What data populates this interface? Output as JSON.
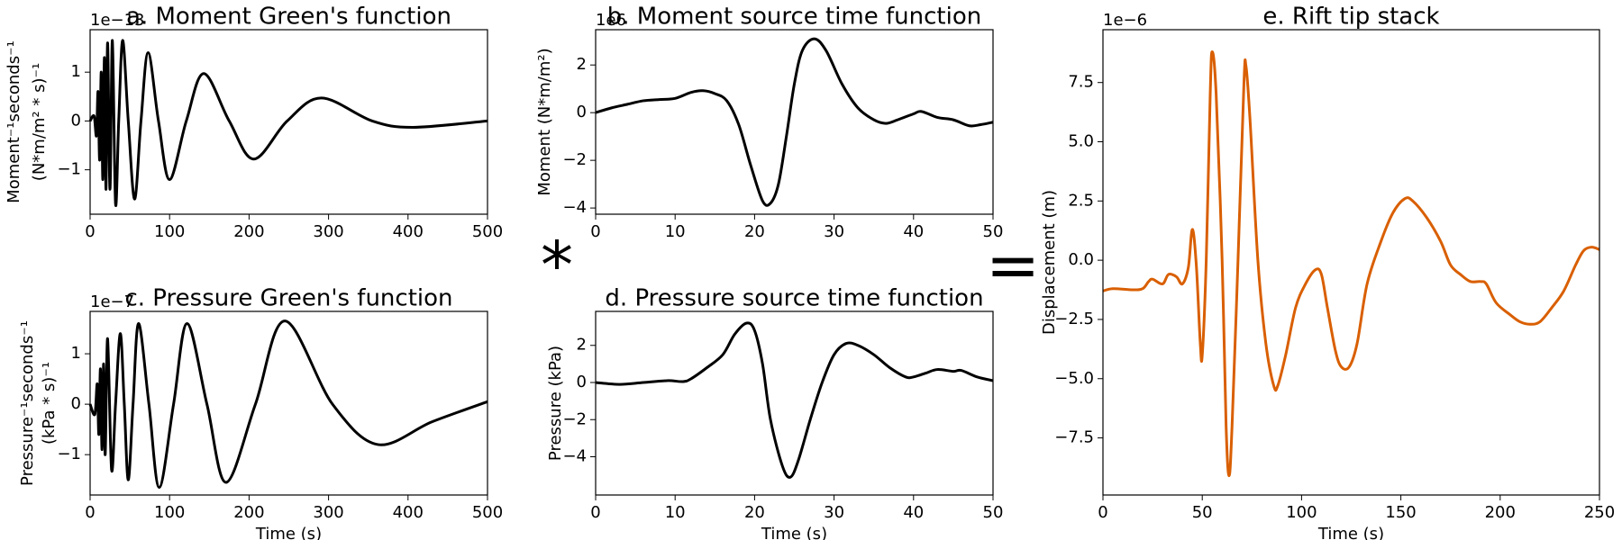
{
  "convolution_symbol": "*",
  "equals_symbol": "=",
  "chart_data": [
    {
      "type": "line",
      "title": "a. Moment Green's function",
      "y_offset_label": "1e−13",
      "ylabel": [
        "Moment⁻¹seconds⁻¹",
        "(N*m/m² * s)⁻¹"
      ],
      "x": [
        0,
        5,
        8,
        10,
        12,
        14,
        16,
        18,
        20,
        22,
        25,
        28,
        32,
        36,
        41,
        48,
        56,
        64,
        73,
        86,
        100,
        121,
        143,
        175,
        206,
        248,
        291,
        355,
        406,
        500
      ],
      "series": [
        {
          "color": "#000000",
          "values": [
            0,
            0.1,
            -0.3,
            0.6,
            -0.8,
            1.0,
            -1.2,
            1.3,
            -1.4,
            1.6,
            -1.4,
            1.65,
            -1.7,
            0,
            1.65,
            0,
            -1.6,
            0,
            1.4,
            0,
            -1.2,
            0,
            0.97,
            0,
            -0.78,
            0,
            0.47,
            0,
            -0.13,
            0
          ]
        }
      ],
      "xlim": [
        0,
        500
      ],
      "xticks": [
        0,
        100,
        200,
        300,
        400,
        500
      ],
      "ylim": [
        -1.91,
        1.87
      ],
      "yticks": [
        {
          "value": -1,
          "label": "−1"
        },
        0,
        1
      ]
    },
    {
      "type": "line",
      "title": "b. Moment source time function",
      "y_offset_label": "1e6",
      "ylabel": [
        "Moment (N*m/m²)"
      ],
      "x": [
        0,
        2,
        4,
        6,
        8,
        10,
        12,
        13.5,
        15,
        16.5,
        18,
        19.5,
        21,
        22,
        23,
        24,
        25,
        26,
        27.5,
        29,
        31,
        33,
        35,
        36.5,
        38,
        40,
        41,
        43,
        45,
        47,
        48.5,
        50
      ],
      "series": [
        {
          "color": "#000000",
          "values": [
            0,
            0.2,
            0.35,
            0.5,
            0.55,
            0.6,
            0.85,
            0.92,
            0.8,
            0.5,
            -0.5,
            -2.2,
            -3.7,
            -3.8,
            -3,
            -1,
            1.2,
            2.6,
            3.1,
            2.6,
            1.2,
            0.2,
            -0.3,
            -0.45,
            -0.3,
            -0.05,
            0.05,
            -0.2,
            -0.3,
            -0.55,
            -0.5,
            -0.4
          ]
        }
      ],
      "xlim": [
        0,
        50
      ],
      "xticks": [
        0,
        10,
        20,
        30,
        40,
        50
      ],
      "ylim": [
        -4.26,
        3.48
      ],
      "yticks": [
        {
          "value": -4,
          "label": "−4"
        },
        {
          "value": -2,
          "label": "−2"
        },
        0,
        2
      ]
    },
    {
      "type": "line",
      "title": "c. Pressure Green's function",
      "y_offset_label": "1e−7",
      "ylabel": [
        "Pressure⁻¹seconds⁻¹",
        "(kPa * s)⁻¹"
      ],
      "xlabel": "Time (s)",
      "x": [
        0,
        6,
        9,
        11,
        13,
        15,
        17,
        19,
        22,
        27,
        32,
        38,
        43,
        48,
        54,
        61,
        74,
        87,
        105,
        122,
        147,
        171,
        208,
        245,
        305,
        362,
        430,
        500
      ],
      "series": [
        {
          "color": "#000000",
          "values": [
            0,
            -0.2,
            0.4,
            -0.6,
            0.7,
            -0.9,
            0.8,
            -1.0,
            1.3,
            -1.3,
            0,
            1.4,
            0,
            -1.5,
            0,
            1.6,
            0,
            -1.65,
            0,
            1.6,
            0,
            -1.55,
            0,
            1.65,
            0,
            -0.8,
            -0.35,
            0.05
          ]
        }
      ],
      "xlim": [
        0,
        500
      ],
      "xticks": [
        0,
        100,
        200,
        300,
        400,
        500
      ],
      "ylim": [
        -1.8,
        1.84
      ],
      "yticks": [
        {
          "value": -1,
          "label": "−1"
        },
        0,
        1
      ]
    },
    {
      "type": "line",
      "title": "d. Pressure source time function",
      "ylabel": [
        "Pressure (kPa)"
      ],
      "xlabel": "Time (s)",
      "x": [
        0,
        3,
        6,
        9,
        11,
        12,
        14,
        16,
        17.5,
        19,
        20,
        21,
        22,
        23.5,
        24.5,
        25.5,
        27,
        28.5,
        30,
        31.5,
        33,
        35,
        37,
        39,
        40,
        41.5,
        43,
        45,
        46,
        48,
        50
      ],
      "series": [
        {
          "color": "#000000",
          "values": [
            0,
            -0.1,
            0,
            0.1,
            0.05,
            0.2,
            0.8,
            1.5,
            2.6,
            3.2,
            2.8,
            1,
            -2,
            -4.5,
            -5.1,
            -4.2,
            -2,
            0,
            1.5,
            2.1,
            2.0,
            1.5,
            0.8,
            0.3,
            0.3,
            0.5,
            0.7,
            0.6,
            0.65,
            0.3,
            0.1
          ]
        }
      ],
      "xlim": [
        0,
        50
      ],
      "xticks": [
        0,
        10,
        20,
        30,
        40,
        50
      ],
      "ylim": [
        -6.06,
        3.83
      ],
      "yticks": [
        {
          "value": -4,
          "label": "−4"
        },
        {
          "value": -2,
          "label": "−2"
        },
        0,
        2
      ]
    },
    {
      "type": "line",
      "title": "e. Rift tip stack",
      "y_offset_label": "1e−6",
      "ylabel": [
        "Displacement (m)"
      ],
      "xlabel": "Time (s)",
      "x": [
        0,
        5,
        15,
        20,
        23,
        25,
        30,
        33,
        37,
        40,
        43,
        45,
        47,
        49,
        50,
        52,
        54,
        55,
        57,
        60,
        62,
        63.5,
        65,
        68,
        71,
        72,
        74,
        78,
        82,
        86,
        88,
        92,
        97,
        102,
        107,
        110,
        113,
        117,
        120,
        124,
        128,
        133,
        140,
        146,
        152,
        156,
        163,
        170,
        175,
        180,
        185,
        190,
        193,
        198,
        205,
        210,
        215,
        220,
        226,
        232,
        238,
        242,
        246,
        250
      ],
      "series": [
        {
          "color": "#d95f02",
          "values": [
            -1.3,
            -1.2,
            -1.25,
            -1.2,
            -0.9,
            -0.8,
            -1.0,
            -0.6,
            -0.7,
            -1.0,
            -0.3,
            1.3,
            -0.2,
            -3.5,
            -4.0,
            0,
            7,
            8.8,
            7,
            0,
            -7,
            -9.1,
            -7,
            0,
            7.5,
            8.2,
            6,
            0,
            -3.5,
            -5.3,
            -5.3,
            -4,
            -2,
            -1,
            -0.4,
            -0.6,
            -2,
            -3.8,
            -4.5,
            -4.5,
            -3.5,
            -1,
            0.8,
            2,
            2.6,
            2.5,
            1.8,
            0.8,
            -0.2,
            -0.6,
            -0.9,
            -0.9,
            -1,
            -1.8,
            -2.3,
            -2.6,
            -2.7,
            -2.6,
            -2,
            -1.3,
            -0.2,
            0.4,
            0.55,
            0.45
          ]
        }
      ],
      "xlim": [
        0,
        250
      ],
      "xticks": [
        0,
        50,
        100,
        150,
        200,
        250
      ],
      "ylim": [
        -9.91,
        9.73
      ],
      "yticks": [
        {
          "value": -7.5,
          "label": "−7.5"
        },
        {
          "value": -5,
          "label": "−5.0"
        },
        {
          "value": -2.5,
          "label": "−2.5"
        },
        {
          "value": 0,
          "label": "0.0"
        },
        {
          "value": 2.5,
          "label": "2.5"
        },
        {
          "value": 5,
          "label": "5.0"
        },
        {
          "value": 7.5,
          "label": "7.5"
        }
      ]
    }
  ]
}
